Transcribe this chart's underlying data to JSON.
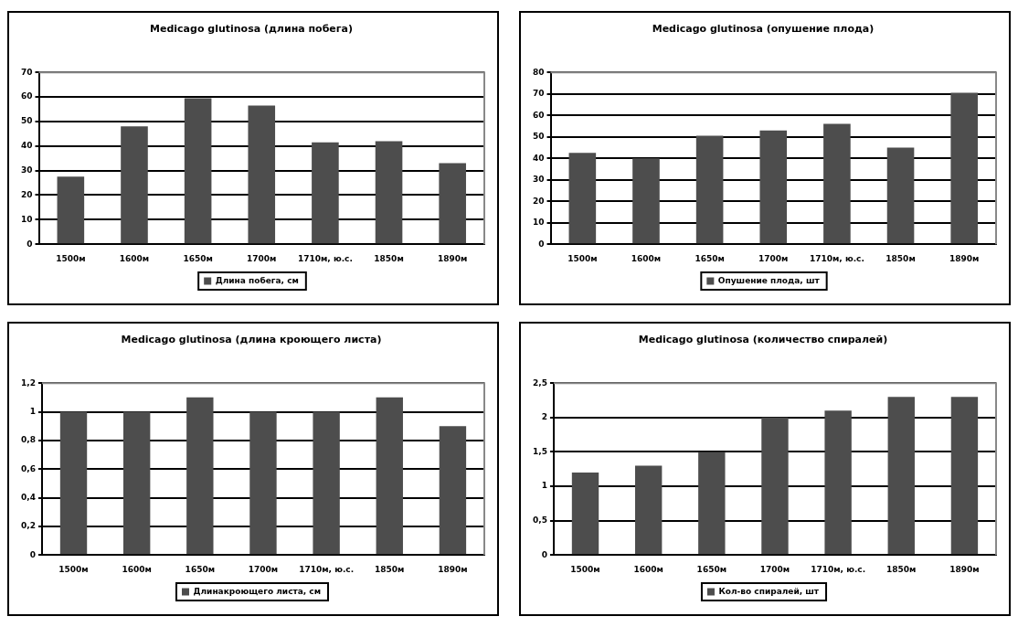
{
  "chart_data": [
    {
      "type": "bar",
      "title": "Medicago glutinosa (длина побега)",
      "categories": [
        "1500м",
        "1600м",
        "1650м",
        "1700м",
        "1710м, ю.с.",
        "1850м",
        "1890м"
      ],
      "series": [
        {
          "name": "Длина побега, см",
          "color": "#4d4d4d",
          "values": [
            27.5,
            48,
            59.5,
            56.5,
            41.5,
            42,
            33
          ]
        }
      ],
      "ylim": [
        0,
        70
      ],
      "yticks": [
        0,
        10,
        20,
        30,
        40,
        50,
        60,
        70
      ],
      "grid": "y",
      "legend": "bottom"
    },
    {
      "type": "bar",
      "title": "Medicago glutinosa (опушение плода)",
      "categories": [
        "1500м",
        "1600м",
        "1650м",
        "1700м",
        "1710м, ю.с.",
        "1850м",
        "1890м"
      ],
      "series": [
        {
          "name": "Опушение плода, шт",
          "color": "#4d4d4d",
          "values": [
            42.5,
            40,
            50.5,
            53,
            56,
            45,
            70.5
          ]
        }
      ],
      "ylim": [
        0,
        80
      ],
      "yticks": [
        0,
        10,
        20,
        30,
        40,
        50,
        60,
        70,
        80
      ],
      "grid": "y",
      "legend": "bottom"
    },
    {
      "type": "bar",
      "title": "Medicago glutinosa (длина кроющего листа)",
      "categories": [
        "1500м",
        "1600м",
        "1650м",
        "1700м",
        "1710м, ю.с.",
        "1850м",
        "1890м"
      ],
      "series": [
        {
          "name": "Длинакроющего листа, см",
          "color": "#4d4d4d",
          "values": [
            1,
            1,
            1.1,
            1,
            1,
            1.1,
            0.9
          ]
        }
      ],
      "ylim": [
        0,
        1.2
      ],
      "yticks": [
        0,
        {
          "value": 0.2,
          "label": "0,2"
        },
        {
          "value": 0.4,
          "label": "0,4"
        },
        {
          "value": 0.6,
          "label": "0,6"
        },
        {
          "value": 0.8,
          "label": "0,8"
        },
        1,
        {
          "value": 1.2,
          "label": "1,2"
        }
      ],
      "grid": "y",
      "legend": "bottom"
    },
    {
      "type": "bar",
      "title": "Medicago glutinosa (количество спиралей)",
      "categories": [
        "1500м",
        "1600м",
        "1650м",
        "1700м",
        "1710м, ю.с.",
        "1850м",
        "1890м"
      ],
      "series": [
        {
          "name": "Кол-во спиралей, шт",
          "color": "#4d4d4d",
          "values": [
            1.2,
            1.3,
            1.5,
            2,
            2.1,
            2.3,
            2.3
          ]
        }
      ],
      "ylim": [
        0,
        2.5
      ],
      "yticks": [
        0,
        {
          "value": 0.5,
          "label": "0,5"
        },
        1,
        {
          "value": 1.5,
          "label": "1,5"
        },
        2,
        {
          "value": 2.5,
          "label": "2,5"
        }
      ],
      "grid": "y",
      "legend": "bottom"
    }
  ]
}
